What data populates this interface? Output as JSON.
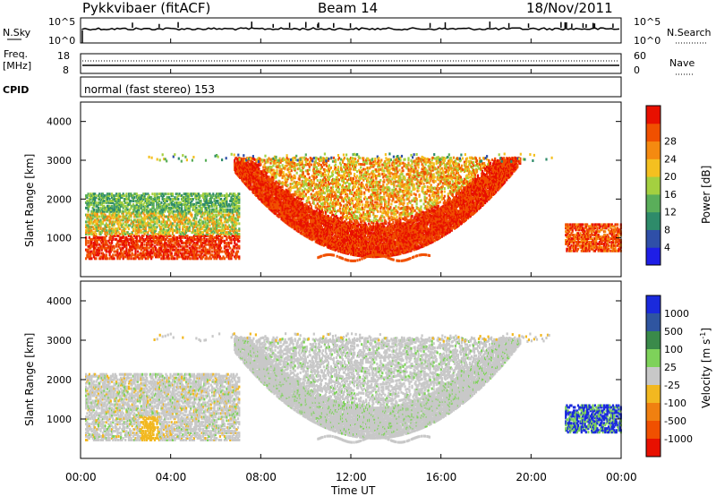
{
  "header": {
    "station": "Pykkvibaer (fitACF)",
    "beam": "Beam 14",
    "date": "18/Nov/2011"
  },
  "panels": {
    "nsky": {
      "label": "N.Sky",
      "ticks": [
        "10^5",
        "10^0"
      ],
      "right_label": "N.Search",
      "right_ticks": [
        "10^5",
        "10^0"
      ]
    },
    "freq": {
      "label_line1": "Freq.",
      "label_line2": "[MHz]",
      "ticks": [
        "18",
        "8"
      ],
      "right_label": "Nave",
      "right_ticks": [
        "60",
        "0"
      ]
    },
    "cpid": {
      "label": "CPID",
      "text": "normal (fast stereo) 153"
    }
  },
  "chart_data": [
    {
      "type": "heatmap",
      "ylabel": "Slant Range [km]",
      "ylim": [
        0,
        4500
      ],
      "yticks": [
        "1000",
        "2000",
        "3000",
        "4000"
      ],
      "xlim_hours": [
        0,
        24
      ],
      "colorbar": {
        "label": "Power [dB]",
        "ticks": [
          "4",
          "8",
          "12",
          "16",
          "20",
          "24",
          "28"
        ],
        "colors": [
          "#1e1ee6",
          "#2f4fa8",
          "#2e8b6a",
          "#5aae5a",
          "#a4d040",
          "#f4c020",
          "#f58a10",
          "#f05000",
          "#e81000"
        ]
      }
    },
    {
      "type": "heatmap",
      "ylabel": "Slant Range [km]",
      "ylim": [
        0,
        4500
      ],
      "yticks": [
        "1000",
        "2000",
        "3000",
        "4000"
      ],
      "xlim_hours": [
        0,
        24
      ],
      "colorbar": {
        "label_main": "Velocity",
        "label_unit": "[m s",
        "label_sup": "-1",
        "label_end": "]",
        "ticks": [
          "1000",
          "500",
          "100",
          "25",
          "-25",
          "-100",
          "-500",
          "-1000"
        ],
        "colors": [
          "#1a2adc",
          "#2f55a0",
          "#3a8a4a",
          "#7ed25a",
          "#c8c8c8",
          "#f2b820",
          "#f08010",
          "#f05000",
          "#e81000"
        ]
      }
    }
  ],
  "xaxis": {
    "label": "Time UT",
    "ticks": [
      "00:00",
      "04:00",
      "08:00",
      "12:00",
      "16:00",
      "20:00",
      "00:00"
    ]
  }
}
